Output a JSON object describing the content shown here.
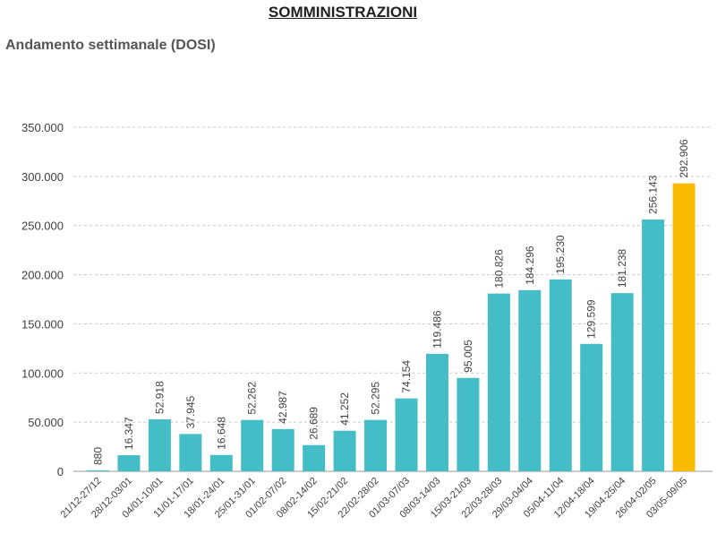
{
  "title": "SOMMINISTRAZIONI",
  "subtitle": "Andamento settimanale (DOSI)",
  "chart_data": {
    "type": "bar",
    "title": "SOMMINISTRAZIONI",
    "subtitle": "Andamento settimanale (DOSI)",
    "xlabel": "",
    "ylabel": "",
    "ylim": [
      0,
      350000
    ],
    "grid": true,
    "y_ticks": [
      "0",
      "50.000",
      "100.000",
      "150.000",
      "200.000",
      "250.000",
      "300.000",
      "350.000"
    ],
    "categories": [
      "21/12-27/12",
      "28/12-03/01",
      "04/01-10/01",
      "11/01-17/01",
      "18/01-24/01",
      "25/01-31/01",
      "01/02-07/02",
      "08/02-14/02",
      "15/02-21/02",
      "22/02-28/02",
      "01/03-07/03",
      "08/03-14/03",
      "15/03-21/03",
      "22/03-28/03",
      "29/03-04/04",
      "05/04-11/04",
      "12/04-18/04",
      "19/04-25/04",
      "26/04-02/05",
      "03/05-09/05"
    ],
    "values": [
      880,
      16347,
      52918,
      37945,
      16648,
      52262,
      42987,
      26689,
      41252,
      52295,
      74154,
      119486,
      95005,
      180826,
      184296,
      195230,
      129599,
      181238,
      256143,
      292906
    ],
    "value_labels": [
      "880",
      "16.347",
      "52.918",
      "37.945",
      "16.648",
      "52.262",
      "42.987",
      "26.689",
      "41.252",
      "52.295",
      "74.154",
      "119.486",
      "95.005",
      "180.826",
      "184.296",
      "195.230",
      "129.599",
      "181.238",
      "256.143",
      "292.906"
    ],
    "colors": {
      "default": "#45BDC6",
      "highlight": "#F9BB00",
      "grid": "#c8c8c8",
      "axis": "#9a9a9a"
    },
    "highlight_index": 19
  }
}
